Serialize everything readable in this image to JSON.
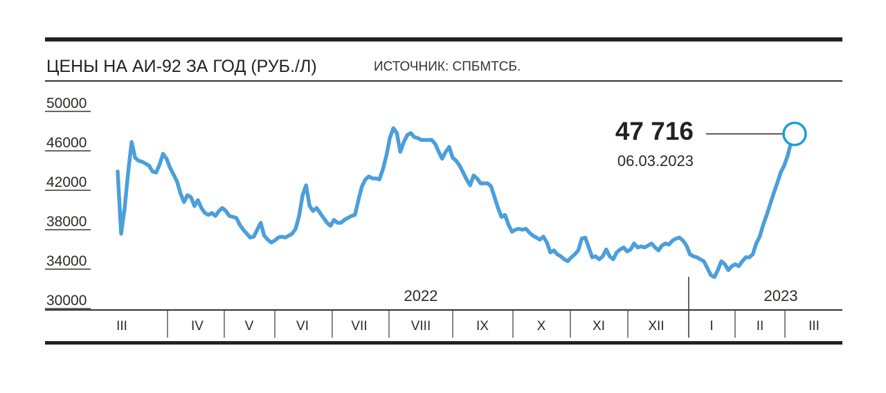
{
  "chart_data": {
    "type": "line",
    "title": "ЦЕНЫ НА АИ-92 ЗА ГОД (РУБ./Л)",
    "source": "ИСТОЧНИК: СПБМТСБ.",
    "ylim": [
      30000,
      50000
    ],
    "yticks": [
      "50000",
      "46000",
      "42000",
      "38000",
      "34000",
      "30000"
    ],
    "ytick_values": [
      50000,
      46000,
      42000,
      38000,
      34000,
      30000
    ],
    "months": [
      "III",
      "IV",
      "V",
      "VI",
      "VII",
      "VIII",
      "IX",
      "X",
      "XI",
      "XII",
      "I",
      "II",
      "III"
    ],
    "years": [
      "2022",
      "2023"
    ],
    "grid": false,
    "series": [
      {
        "name": "АИ-92",
        "color": "#4b9fda",
        "values": [
          43900,
          37600,
          40200,
          43800,
          46900,
          45300,
          45000,
          44900,
          44700,
          44500,
          43900,
          43800,
          44600,
          45700,
          45200,
          44300,
          43600,
          42900,
          41700,
          40800,
          41500,
          41300,
          40400,
          41000,
          40200,
          39700,
          39500,
          39700,
          39400,
          39900,
          40200,
          39900,
          39400,
          39300,
          39200,
          38500,
          38000,
          37600,
          37200,
          37300,
          38000,
          38700,
          37400,
          37000,
          36700,
          36900,
          37200,
          37300,
          37200,
          37400,
          37600,
          38100,
          39400,
          41500,
          42500,
          40400,
          39900,
          40200,
          39700,
          39200,
          38700,
          38400,
          39000,
          38700,
          38700,
          39000,
          39200,
          39400,
          39500,
          41000,
          42400,
          43100,
          43400,
          43200,
          43200,
          43100,
          44100,
          45500,
          47300,
          48300,
          47800,
          45900,
          46900,
          47600,
          47800,
          47400,
          47300,
          47100,
          47100,
          47100,
          47100,
          46700,
          45900,
          45200,
          45900,
          46400,
          45300,
          45000,
          44500,
          43800,
          43100,
          42500,
          43500,
          43200,
          42700,
          42700,
          42700,
          42400,
          41300,
          40200,
          39300,
          39500,
          38500,
          37800,
          38000,
          38100,
          38000,
          38100,
          37700,
          37400,
          37200,
          37000,
          37300,
          36700,
          35700,
          35900,
          35500,
          35300,
          35000,
          34800,
          35200,
          35500,
          35900,
          37100,
          37200,
          36200,
          35200,
          35300,
          35000,
          35300,
          36000,
          35300,
          35000,
          35700,
          36000,
          36200,
          35800,
          36000,
          36600,
          36200,
          36300,
          36200,
          36400,
          36600,
          36200,
          35900,
          36400,
          36600,
          36500,
          36900,
          37100,
          37200,
          36900,
          36400,
          35500,
          35300,
          35200,
          35000,
          34800,
          34100,
          33400,
          33200,
          33900,
          34800,
          34500,
          33900,
          34300,
          34500,
          34300,
          34800,
          35200,
          35200,
          35500,
          36600,
          37300,
          38500,
          39500,
          40600,
          41700,
          42700,
          43800,
          44500,
          45500,
          46900,
          47716
        ]
      }
    ],
    "annotation": {
      "value_label": "47 716",
      "date_label": "06.03.2023",
      "value": 47716,
      "marker_color": "#1a9fd6"
    }
  }
}
